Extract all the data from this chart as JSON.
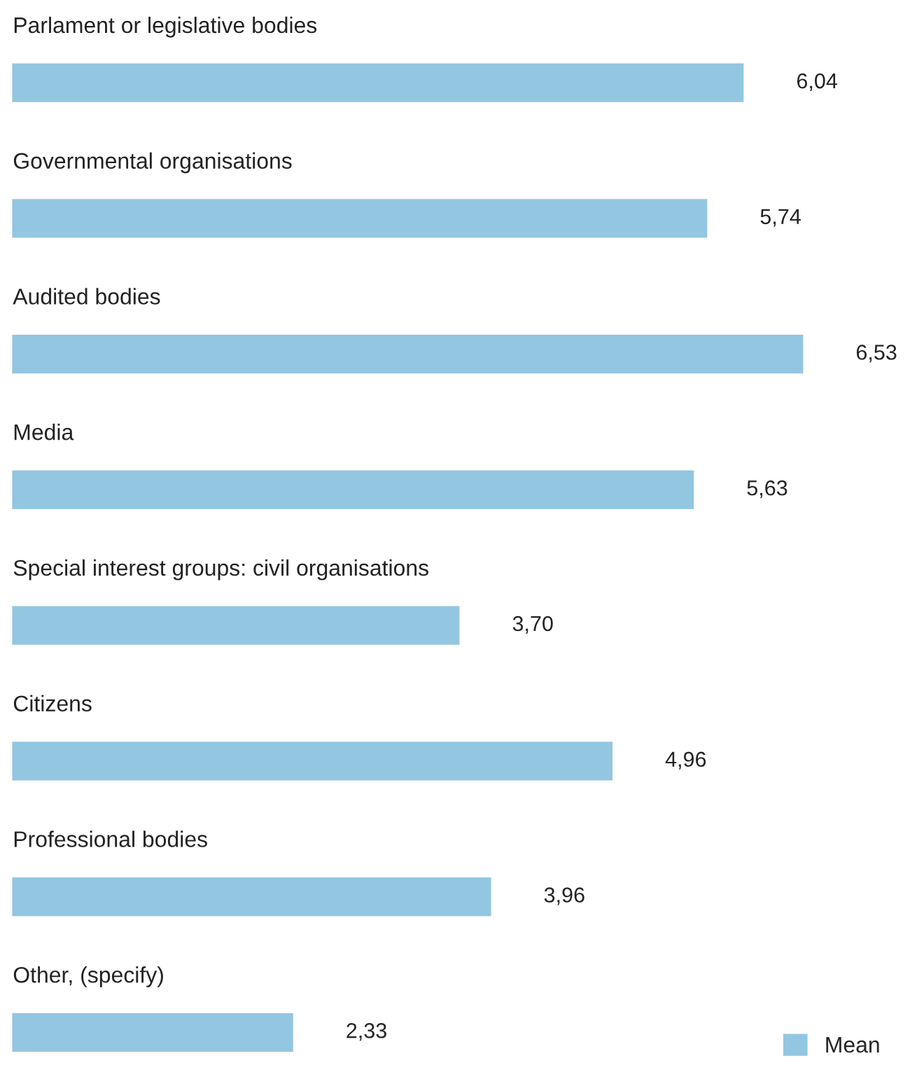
{
  "chart_data": {
    "type": "bar",
    "orientation": "horizontal",
    "categories": [
      "Parlament or legislative bodies",
      "Governmental organisations",
      "Audited bodies",
      "Media",
      "Special interest groups: civil organisations",
      "Citizens",
      "Professional bodies",
      "Other, (specify)"
    ],
    "series": [
      {
        "name": "Mean",
        "color": "#93c6e1",
        "values": [
          6.04,
          5.74,
          6.53,
          5.63,
          3.7,
          4.96,
          3.96,
          2.33
        ],
        "value_labels": [
          "6,04",
          "5,74",
          "6,53",
          "5,63",
          "3,70",
          "4,96",
          "3,96",
          "2,33"
        ]
      }
    ],
    "legend": "bottom right"
  }
}
